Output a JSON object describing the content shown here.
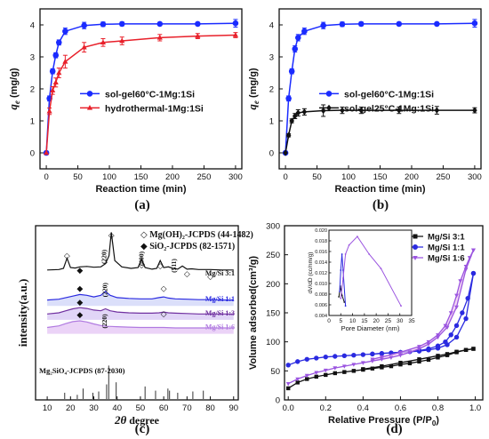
{
  "panels": {
    "a": {
      "label": "(a)"
    },
    "b": {
      "label": "(b)"
    },
    "c": {
      "label": "(c)"
    },
    "d": {
      "label": "(d)"
    }
  },
  "chart_data": [
    {
      "id": "a",
      "type": "line",
      "xlabel": "Reaction time (min)",
      "ylabel_main": "q",
      "ylabel_sub": "e",
      "ylabel_unit": " (mg/g)",
      "xlim": [
        -10,
        310
      ],
      "ylim": [
        -0.5,
        4.5
      ],
      "xticks": [
        0,
        50,
        100,
        150,
        200,
        250,
        300
      ],
      "yticks": [
        0,
        1,
        2,
        3,
        4
      ],
      "legend_position": "center-right",
      "series": [
        {
          "name": "sol-gel60°C-1Mg:1Si",
          "color": "#1a2bff",
          "marker": "circle",
          "x": [
            0,
            5,
            10,
            15,
            20,
            30,
            60,
            90,
            120,
            180,
            240,
            300
          ],
          "y": [
            0,
            1.7,
            2.55,
            3.05,
            3.45,
            3.8,
            3.98,
            4.02,
            4.03,
            4.03,
            4.03,
            4.05
          ],
          "err": [
            0,
            0.08,
            0.08,
            0.08,
            0.08,
            0.1,
            0.1,
            0.07,
            0.06,
            0.05,
            0.05,
            0.12
          ]
        },
        {
          "name": "hydrothermal-1Mg:1Si",
          "color": "#e8202a",
          "marker": "triangle",
          "x": [
            0,
            5,
            10,
            15,
            20,
            30,
            60,
            90,
            120,
            180,
            240,
            300
          ],
          "y": [
            0,
            1.3,
            1.95,
            2.2,
            2.5,
            2.85,
            3.3,
            3.45,
            3.5,
            3.6,
            3.65,
            3.68
          ],
          "err": [
            0,
            0.1,
            0.12,
            0.14,
            0.15,
            0.2,
            0.15,
            0.12,
            0.12,
            0.1,
            0.08,
            0.08
          ]
        }
      ]
    },
    {
      "id": "b",
      "type": "line",
      "xlabel": "Reaction time (min)",
      "ylabel_main": "q",
      "ylabel_sub": "e",
      "ylabel_unit": " (mg/g)",
      "xlim": [
        -10,
        310
      ],
      "ylim": [
        -0.5,
        4.5
      ],
      "xticks": [
        0,
        50,
        100,
        150,
        200,
        250,
        300
      ],
      "yticks": [
        0,
        1,
        2,
        3,
        4
      ],
      "legend_position": "center-right",
      "series": [
        {
          "name": "sol-gel60°C-1Mg:1Si",
          "color": "#1a2bff",
          "marker": "circle",
          "x": [
            0,
            5,
            10,
            15,
            20,
            30,
            60,
            90,
            120,
            180,
            240,
            300
          ],
          "y": [
            0,
            1.7,
            2.55,
            3.25,
            3.6,
            3.8,
            3.98,
            4.02,
            4.03,
            4.03,
            4.03,
            4.05
          ],
          "err": [
            0,
            0.08,
            0.08,
            0.1,
            0.1,
            0.1,
            0.1,
            0.07,
            0.06,
            0.05,
            0.05,
            0.12
          ]
        },
        {
          "name": "sol-gel25°C-1Mg:1Si",
          "color": "#111111",
          "marker": "diamond",
          "x": [
            0,
            5,
            10,
            15,
            20,
            30,
            60,
            90,
            120,
            180,
            240,
            300
          ],
          "y": [
            0,
            0.55,
            1.0,
            1.15,
            1.25,
            1.28,
            1.32,
            1.33,
            1.33,
            1.33,
            1.33,
            1.33
          ],
          "err": [
            0,
            0.05,
            0.06,
            0.08,
            0.1,
            0.1,
            0.18,
            0.1,
            0.1,
            0.1,
            0.12,
            0.08
          ]
        }
      ]
    },
    {
      "id": "c",
      "type": "line",
      "xlabel_main": "2",
      "xlabel_theta": "θ",
      "xlabel_unit": " degree",
      "ylabel": "intensity(a.u.)",
      "xlim": [
        5,
        92
      ],
      "xticks": [
        10,
        20,
        30,
        40,
        50,
        60,
        70,
        80,
        90
      ],
      "annotations": {
        "legend_line1": "◇ Mg(OH)₂-JCPDS (44-1482)",
        "legend_line2": "◆ SiO₂-JCPDS (82-1571)",
        "reference": "Mg₂SiO₄-JCPDS (87-2030)",
        "peak_labels": [
          "(220)",
          "(220)",
          "(220)",
          "(400)",
          "(511)"
        ]
      },
      "series": [
        {
          "name": "Mg/Si 3:1",
          "color": "#111111",
          "x": [
            10,
            15,
            17,
            18.5,
            20,
            22,
            24,
            27,
            30,
            33,
            35,
            36.5,
            37.5,
            39,
            42,
            46,
            49,
            50.5,
            52,
            55,
            57,
            58.5,
            60,
            62,
            64,
            66,
            68,
            70,
            72,
            75,
            80,
            85,
            90
          ],
          "y": [
            0.8,
            0.85,
            1.0,
            2.3,
            1.1,
            1.05,
            1.2,
            1.25,
            1.15,
            1.2,
            1.6,
            2.6,
            5.6,
            2.0,
            1.2,
            1.0,
            1.1,
            2.2,
            1.1,
            0.9,
            1.0,
            2.0,
            1.1,
            1.2,
            1.0,
            0.9,
            1.3,
            0.9,
            0.95,
            0.85,
            0.85,
            0.8,
            0.8
          ]
        },
        {
          "name": "Mg/Si 1:1",
          "color": "#2a2ae0",
          "x": [
            10,
            15,
            18,
            21,
            24,
            27,
            30,
            33,
            35,
            37,
            40,
            45,
            50,
            55,
            58,
            60,
            62,
            65,
            70,
            75,
            80,
            85,
            90
          ],
          "y": [
            0.3,
            0.4,
            0.6,
            0.8,
            1.0,
            0.9,
            0.7,
            0.9,
            1.4,
            0.9,
            0.6,
            0.5,
            0.45,
            0.45,
            0.6,
            0.7,
            0.55,
            0.45,
            0.4,
            0.35,
            0.35,
            0.3,
            0.3
          ]
        },
        {
          "name": "Mg/Si 1:3",
          "color": "#7030a0",
          "x": [
            10,
            15,
            18,
            21,
            24,
            27,
            30,
            33,
            35,
            37,
            40,
            45,
            50,
            55,
            58,
            60,
            62,
            65,
            70,
            75,
            80,
            85,
            90
          ],
          "y": [
            0.3,
            0.45,
            0.7,
            0.95,
            1.1,
            1.0,
            0.8,
            0.7,
            0.95,
            0.7,
            0.55,
            0.45,
            0.4,
            0.4,
            0.45,
            0.55,
            0.45,
            0.4,
            0.35,
            0.3,
            0.3,
            0.3,
            0.3
          ]
        },
        {
          "name": "Mg/Si 1:6",
          "color": "#b07ae0",
          "x": [
            10,
            15,
            18,
            21,
            24,
            27,
            30,
            33,
            36,
            40,
            45,
            50,
            55,
            60,
            65,
            70,
            75,
            80,
            85,
            90
          ],
          "y": [
            0.35,
            0.55,
            0.85,
            1.1,
            1.2,
            1.05,
            0.8,
            0.6,
            0.5,
            0.45,
            0.4,
            0.35,
            0.35,
            0.35,
            0.3,
            0.3,
            0.3,
            0.3,
            0.3,
            0.3
          ]
        }
      ],
      "reference_peaks": {
        "x": [
          17.5,
          22.9,
          25.4,
          29.6,
          32.1,
          35.5,
          36.4,
          39.6,
          52.0,
          56.5,
          61.8,
          62.5,
          66.0,
          72.5,
          77.0
        ],
        "height": [
          0.15,
          0.1,
          0.25,
          0.15,
          0.18,
          0.35,
          0.8,
          0.4,
          0.3,
          0.2,
          0.25,
          0.2,
          0.15,
          0.18,
          0.2
        ]
      }
    },
    {
      "id": "d",
      "type": "line",
      "xlabel_main": "Relative Pressure (P/P",
      "xlabel_sub": "0",
      "xlabel_end": ")",
      "ylabel": "Volume adsorbed(cm³/g)",
      "xlim": [
        -0.02,
        1.04
      ],
      "ylim": [
        0,
        300
      ],
      "xticks": [
        0.0,
        0.2,
        0.4,
        0.6,
        0.8,
        1.0
      ],
      "yticks": [
        0,
        50,
        100,
        150,
        200,
        250,
        300
      ],
      "legend_position": "top-right",
      "series": [
        {
          "name": "Mg/Si 3:1",
          "color": "#111111",
          "marker": "square",
          "adsorption": {
            "x": [
              0.0,
              0.05,
              0.1,
              0.15,
              0.2,
              0.25,
              0.3,
              0.35,
              0.4,
              0.45,
              0.5,
              0.55,
              0.6,
              0.65,
              0.7,
              0.75,
              0.8,
              0.85,
              0.9,
              0.95,
              0.99
            ],
            "y": [
              20,
              30,
              36,
              40,
              43,
              46,
              48,
              50,
              52,
              54,
              56,
              58,
              61,
              63,
              66,
              69,
              73,
              77,
              82,
              86,
              88
            ]
          },
          "desorption": {
            "x": [
              0.99,
              0.95,
              0.9,
              0.85,
              0.8,
              0.7,
              0.6,
              0.5,
              0.4
            ],
            "y": [
              88,
              86,
              83,
              79,
              76,
              70,
              64,
              58,
              53
            ]
          }
        },
        {
          "name": "Mg/Si 1:1",
          "color": "#2a2ae0",
          "marker": "circle",
          "adsorption": {
            "x": [
              0.0,
              0.05,
              0.1,
              0.15,
              0.2,
              0.25,
              0.3,
              0.35,
              0.4,
              0.45,
              0.5,
              0.55,
              0.6,
              0.65,
              0.7,
              0.75,
              0.8,
              0.85,
              0.9,
              0.95,
              0.99
            ],
            "y": [
              60,
              66,
              70,
              72,
              74,
              75,
              76,
              77,
              78,
              79,
              80,
              81,
              82,
              83,
              84,
              86,
              89,
              95,
              108,
              140,
              218
            ]
          },
          "desorption": {
            "x": [
              0.99,
              0.96,
              0.93,
              0.9,
              0.87,
              0.84,
              0.8,
              0.75,
              0.7,
              0.6,
              0.5,
              0.45
            ],
            "y": [
              218,
              175,
              150,
              128,
              112,
              100,
              93,
              88,
              85,
              82,
              80,
              79
            ]
          }
        },
        {
          "name": "Mg/Si 1:6",
          "color": "#9b55e0",
          "marker": "triangle-down",
          "adsorption": {
            "x": [
              0.0,
              0.05,
              0.1,
              0.15,
              0.2,
              0.25,
              0.3,
              0.35,
              0.4,
              0.45,
              0.5,
              0.55,
              0.6,
              0.65,
              0.7,
              0.75,
              0.8,
              0.85,
              0.9,
              0.95,
              0.99
            ],
            "y": [
              28,
              36,
              42,
              47,
              51,
              55,
              58,
              61,
              64,
              67,
              70,
              73,
              77,
              82,
              88,
              96,
              108,
              125,
              160,
              225,
              258
            ]
          },
          "desorption": {
            "x": [
              0.99,
              0.97,
              0.95,
              0.92,
              0.9,
              0.87,
              0.84,
              0.8,
              0.75,
              0.7,
              0.6,
              0.5,
              0.45
            ],
            "y": [
              258,
              245,
              230,
              205,
              180,
              150,
              128,
              112,
              100,
              92,
              82,
              74,
              70
            ]
          }
        }
      ],
      "inset": {
        "xlabel": "Pore Diameter (nm)",
        "ylabel": "dV/dD (cc/nm/g)",
        "xlim": [
          0,
          35
        ],
        "ylim": [
          0.004,
          0.02
        ],
        "xticks": [
          0,
          5,
          10,
          15,
          20,
          25,
          30,
          35
        ],
        "yticks": [
          0.004,
          0.006,
          0.008,
          0.01,
          0.012,
          0.014,
          0.016,
          0.018,
          0.02
        ],
        "ytick_labels": [
          "0.004",
          "0.006",
          "0.008",
          "0.010",
          "0.012",
          "0.014",
          "0.016",
          "0.018",
          "0.020"
        ],
        "series": [
          {
            "name": "Mg/Si 3:1",
            "color": "#111111",
            "x": [
              4.2,
              4.8,
              5.5,
              6.5
            ],
            "y": [
              0.0075,
              0.0095,
              0.0078,
              0.0065
            ]
          },
          {
            "name": "Mg/Si 1:1",
            "color": "#2a2ae0",
            "x": [
              4.5,
              5.0,
              5.5,
              6.0,
              7.0
            ],
            "y": [
              0.0085,
              0.0125,
              0.0155,
              0.0125,
              0.0058
            ]
          },
          {
            "name": "Mg/Si 1:6",
            "color": "#9b55e0",
            "x": [
              5.0,
              6.0,
              7.0,
              8.5,
              12.0,
              17.0,
              22.0,
              30.5
            ],
            "y": [
              0.0072,
              0.011,
              0.0155,
              0.0172,
              0.0188,
              0.0155,
              0.0128,
              0.0058
            ]
          }
        ]
      }
    }
  ]
}
